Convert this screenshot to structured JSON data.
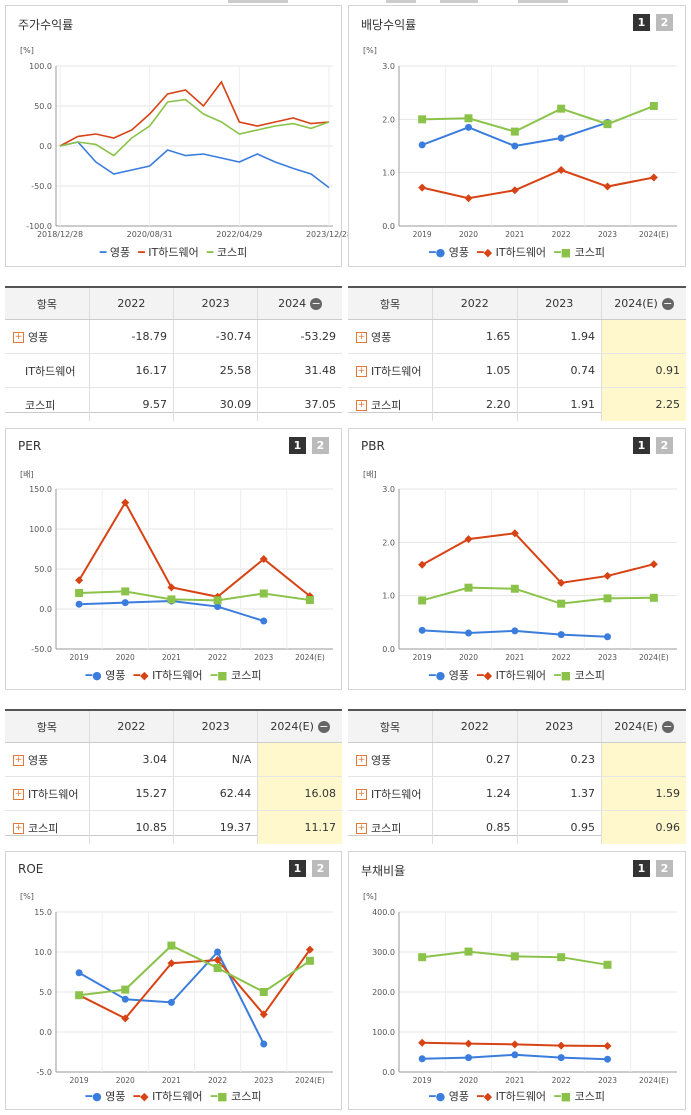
{
  "legend": [
    "영풍",
    "IT하드웨어",
    "코스피"
  ],
  "colors": {
    "s1": "#3b7ddd",
    "s2": "#d84315",
    "s3": "#8bc34a",
    "highlight": "#fff8cc"
  },
  "pager": [
    "1",
    "2"
  ],
  "panels": {
    "stock": {
      "title": "주가수익률",
      "unit": "[%]",
      "ticks": [
        "100.0",
        "50.0",
        "0.0",
        "-50.0",
        "-100.0"
      ],
      "xticks": [
        "2018/12/28",
        "2020/08/31",
        "2022/04/29",
        "2023/12/28"
      ]
    },
    "div": {
      "title": "배당수익률",
      "unit": "[%]",
      "ticks": [
        "3.0",
        "2.0",
        "1.0",
        "0.0"
      ],
      "xticks": [
        "2019",
        "2020",
        "2021",
        "2022",
        "2023",
        "2024(E)"
      ]
    },
    "per": {
      "title": "PER",
      "unit": "[배]",
      "ticks": [
        "150.0",
        "100.0",
        "50.0",
        "0.0",
        "-50.0"
      ],
      "xticks": [
        "2019",
        "2020",
        "2021",
        "2022",
        "2023",
        "2024(E)"
      ]
    },
    "pbr": {
      "title": "PBR",
      "unit": "[배]",
      "ticks": [
        "3.0",
        "2.0",
        "1.0",
        "0.0"
      ],
      "xticks": [
        "2019",
        "2020",
        "2021",
        "2022",
        "2023",
        "2024(E)"
      ]
    },
    "roe": {
      "title": "ROE",
      "unit": "[%]",
      "ticks": [
        "15.0",
        "10.0",
        "5.0",
        "0.0",
        "-5.0"
      ],
      "xticks": [
        "2019",
        "2020",
        "2021",
        "2022",
        "2023",
        "2024(E)"
      ]
    },
    "debt": {
      "title": "부채비율",
      "unit": "[%]",
      "ticks": [
        "400.0",
        "300.0",
        "200.0",
        "100.0",
        "0.0"
      ],
      "xticks": [
        "2019",
        "2020",
        "2021",
        "2022",
        "2023",
        "2024(E)"
      ]
    }
  },
  "tables": {
    "stock": {
      "headers": [
        "항목",
        "2022",
        "2023",
        "2024"
      ],
      "rows": [
        {
          "name": "영풍",
          "vals": [
            "-18.79",
            "-30.74",
            "-53.29"
          ]
        },
        {
          "name": "IT하드웨어",
          "vals": [
            "16.17",
            "25.58",
            "31.48"
          ]
        },
        {
          "name": "코스피",
          "vals": [
            "9.57",
            "30.09",
            "37.05"
          ]
        }
      ]
    },
    "div": {
      "headers": [
        "항목",
        "2022",
        "2023",
        "2024(E)"
      ],
      "rows": [
        {
          "name": "영풍",
          "vals": [
            "1.65",
            "1.94",
            ""
          ]
        },
        {
          "name": "IT하드웨어",
          "vals": [
            "1.05",
            "0.74",
            "0.91"
          ]
        },
        {
          "name": "코스피",
          "vals": [
            "2.20",
            "1.91",
            "2.25"
          ]
        }
      ]
    },
    "per": {
      "headers": [
        "항목",
        "2022",
        "2023",
        "2024(E)"
      ],
      "rows": [
        {
          "name": "영풍",
          "vals": [
            "3.04",
            "N/A",
            ""
          ]
        },
        {
          "name": "IT하드웨어",
          "vals": [
            "15.27",
            "62.44",
            "16.08"
          ]
        },
        {
          "name": "코스피",
          "vals": [
            "10.85",
            "19.37",
            "11.17"
          ]
        }
      ]
    },
    "pbr": {
      "headers": [
        "항목",
        "2022",
        "2023",
        "2024(E)"
      ],
      "rows": [
        {
          "name": "영풍",
          "vals": [
            "0.27",
            "0.23",
            ""
          ]
        },
        {
          "name": "IT하드웨어",
          "vals": [
            "1.24",
            "1.37",
            "1.59"
          ]
        },
        {
          "name": "코스피",
          "vals": [
            "0.85",
            "0.95",
            "0.96"
          ]
        }
      ]
    }
  },
  "chart_data": [
    {
      "id": "stock",
      "type": "line",
      "title": "주가수익률",
      "ylabel": "[%]",
      "ylim": [
        -100,
        100
      ],
      "x": [
        "2018/12/28",
        "2019/06",
        "2019/12",
        "2020/03",
        "2020/08/31",
        "2021/01",
        "2021/06",
        "2021/10",
        "2022/01",
        "2022/04/29",
        "2022/09",
        "2023/01",
        "2023/06",
        "2023/09",
        "2023/12/28",
        "2024/03"
      ],
      "series": [
        {
          "name": "영풍",
          "values": [
            0,
            5,
            -20,
            -35,
            -30,
            -25,
            -5,
            -12,
            -10,
            -15,
            -20,
            -10,
            -20,
            -28,
            -35,
            -52
          ]
        },
        {
          "name": "IT하드웨어",
          "values": [
            0,
            12,
            15,
            10,
            20,
            40,
            65,
            70,
            50,
            80,
            30,
            25,
            30,
            35,
            28,
            30
          ]
        },
        {
          "name": "코스피",
          "values": [
            0,
            5,
            2,
            -12,
            10,
            25,
            55,
            58,
            40,
            30,
            15,
            20,
            25,
            28,
            22,
            30
          ]
        }
      ]
    },
    {
      "id": "div",
      "type": "line",
      "title": "배당수익률",
      "ylabel": "[%]",
      "ylim": [
        0,
        3
      ],
      "x": [
        "2019",
        "2020",
        "2021",
        "2022",
        "2023",
        "2024(E)"
      ],
      "series": [
        {
          "name": "영풍",
          "values": [
            1.52,
            1.85,
            1.5,
            1.65,
            1.94,
            null
          ]
        },
        {
          "name": "IT하드웨어",
          "values": [
            0.72,
            0.52,
            0.67,
            1.05,
            0.74,
            0.91
          ]
        },
        {
          "name": "코스피",
          "values": [
            2.0,
            2.02,
            1.77,
            2.2,
            1.91,
            2.25
          ]
        }
      ]
    },
    {
      "id": "per",
      "type": "line",
      "title": "PER",
      "ylabel": "[배]",
      "ylim": [
        -50,
        150
      ],
      "x": [
        "2019",
        "2020",
        "2021",
        "2022",
        "2023",
        "2024(E)"
      ],
      "series": [
        {
          "name": "영풍",
          "values": [
            6,
            8,
            10,
            3.04,
            -15,
            null
          ]
        },
        {
          "name": "IT하드웨어",
          "values": [
            36,
            133,
            27,
            15.27,
            62.44,
            16.08
          ]
        },
        {
          "name": "코스피",
          "values": [
            20,
            22,
            12,
            10.85,
            19.37,
            11.17
          ]
        }
      ]
    },
    {
      "id": "pbr",
      "type": "line",
      "title": "PBR",
      "ylabel": "[배]",
      "ylim": [
        0,
        3
      ],
      "x": [
        "2019",
        "2020",
        "2021",
        "2022",
        "2023",
        "2024(E)"
      ],
      "series": [
        {
          "name": "영풍",
          "values": [
            0.35,
            0.3,
            0.34,
            0.27,
            0.23,
            null
          ]
        },
        {
          "name": "IT하드웨어",
          "values": [
            1.58,
            2.06,
            2.17,
            1.24,
            1.37,
            1.59
          ]
        },
        {
          "name": "코스피",
          "values": [
            0.91,
            1.15,
            1.13,
            0.85,
            0.95,
            0.96
          ]
        }
      ]
    },
    {
      "id": "roe",
      "type": "line",
      "title": "ROE",
      "ylabel": "[%]",
      "ylim": [
        -5,
        15
      ],
      "x": [
        "2019",
        "2020",
        "2021",
        "2022",
        "2023",
        "2024(E)"
      ],
      "series": [
        {
          "name": "영풍",
          "values": [
            7.4,
            4.1,
            3.7,
            10.0,
            -1.5,
            null
          ]
        },
        {
          "name": "IT하드웨어",
          "values": [
            4.6,
            1.7,
            8.6,
            9.0,
            2.2,
            10.3
          ]
        },
        {
          "name": "코스피",
          "values": [
            4.6,
            5.3,
            10.8,
            8.0,
            5.0,
            8.9
          ]
        }
      ]
    },
    {
      "id": "debt",
      "type": "line",
      "title": "부채비율",
      "ylabel": "[%]",
      "ylim": [
        0,
        400
      ],
      "x": [
        "2019",
        "2020",
        "2021",
        "2022",
        "2023",
        "2024(E)"
      ],
      "series": [
        {
          "name": "영풍",
          "values": [
            33,
            36,
            43,
            36,
            32,
            null
          ]
        },
        {
          "name": "IT하드웨어",
          "values": [
            73,
            71,
            69,
            66,
            65,
            null
          ]
        },
        {
          "name": "코스피",
          "values": [
            287,
            301,
            289,
            287,
            268,
            null
          ]
        }
      ]
    }
  ]
}
